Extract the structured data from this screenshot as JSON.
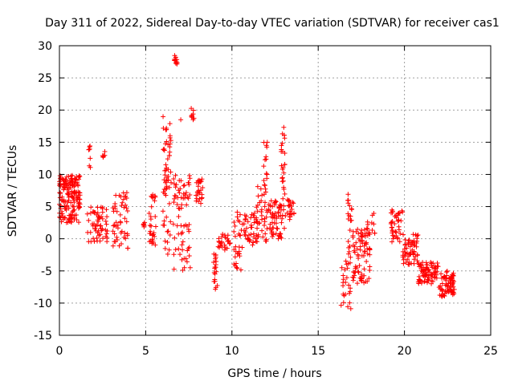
{
  "chart_data": {
    "type": "scatter",
    "title": "Day 311 of 2022, Sidereal Day-to-day VTEC variation (SDTVAR) for receiver cas1",
    "xlabel": "GPS time / hours",
    "ylabel": "SDTVAR / TECUs",
    "xlim": [
      0,
      25
    ],
    "ylim": [
      -15,
      30
    ],
    "xticks": [
      0,
      5,
      10,
      15,
      20,
      25
    ],
    "yticks": [
      -15,
      -10,
      -5,
      0,
      5,
      10,
      15,
      20,
      25,
      30
    ],
    "grid": true,
    "marker": "+",
    "color": "#ff0000",
    "series": [
      {
        "name": "SDTVAR",
        "clusters": [
          {
            "x0": 0.0,
            "x1": 1.2,
            "ymin": 2.5,
            "ymax": 10.0,
            "count": 160
          },
          {
            "x0": 1.6,
            "x1": 2.8,
            "ymin": -0.5,
            "ymax": 5.0,
            "count": 60
          },
          {
            "x0": 1.7,
            "x1": 1.8,
            "ymin": 10.5,
            "ymax": 14.5,
            "count": 8
          },
          {
            "x0": 2.5,
            "x1": 2.65,
            "ymin": 12.5,
            "ymax": 14.0,
            "count": 6
          },
          {
            "x0": 3.1,
            "x1": 4.0,
            "ymin": -1.5,
            "ymax": 7.5,
            "count": 50
          },
          {
            "x0": 4.85,
            "x1": 5.0,
            "ymin": 1.8,
            "ymax": 2.6,
            "count": 6
          },
          {
            "x0": 5.2,
            "x1": 5.6,
            "ymin": -1.5,
            "ymax": 7.0,
            "count": 30
          },
          {
            "x0": 6.0,
            "x1": 6.5,
            "ymin": -2.5,
            "ymax": 20.0,
            "count": 60
          },
          {
            "x0": 6.65,
            "x1": 6.85,
            "ymin": 27.0,
            "ymax": 28.5,
            "count": 10
          },
          {
            "x0": 6.6,
            "x1": 7.6,
            "ymin": -5.0,
            "ymax": 10.0,
            "count": 70
          },
          {
            "x0": 7.0,
            "x1": 7.1,
            "ymin": 18.5,
            "ymax": 18.5,
            "count": 1
          },
          {
            "x0": 7.6,
            "x1": 7.8,
            "ymin": 18.0,
            "ymax": 20.5,
            "count": 8
          },
          {
            "x0": 7.9,
            "x1": 8.3,
            "ymin": 5.0,
            "ymax": 9.5,
            "count": 25
          },
          {
            "x0": 8.9,
            "x1": 9.2,
            "ymin": -8.0,
            "ymax": -2.0,
            "count": 20
          },
          {
            "x0": 9.2,
            "x1": 9.9,
            "ymin": -2.0,
            "ymax": 0.8,
            "count": 25
          },
          {
            "x0": 10.1,
            "x1": 10.6,
            "ymin": -5.0,
            "ymax": 4.5,
            "count": 30
          },
          {
            "x0": 10.6,
            "x1": 11.5,
            "ymin": -1.0,
            "ymax": 4.0,
            "count": 40
          },
          {
            "x0": 11.4,
            "x1": 12.0,
            "ymin": -0.5,
            "ymax": 8.5,
            "count": 40
          },
          {
            "x0": 11.8,
            "x1": 12.05,
            "ymin": 8.5,
            "ymax": 16.5,
            "count": 12
          },
          {
            "x0": 12.0,
            "x1": 12.9,
            "ymin": 0.0,
            "ymax": 6.0,
            "count": 60
          },
          {
            "x0": 12.85,
            "x1": 13.1,
            "ymin": 1.0,
            "ymax": 18.5,
            "count": 30
          },
          {
            "x0": 13.2,
            "x1": 13.6,
            "ymin": 3.0,
            "ymax": 6.5,
            "count": 20
          },
          {
            "x0": 16.3,
            "x1": 16.9,
            "ymin": -11.5,
            "ymax": -3.0,
            "count": 25
          },
          {
            "x0": 16.7,
            "x1": 17.0,
            "ymin": -3.0,
            "ymax": 7.0,
            "count": 20
          },
          {
            "x0": 17.0,
            "x1": 18.0,
            "ymin": -7.0,
            "ymax": 1.5,
            "count": 80
          },
          {
            "x0": 17.8,
            "x1": 18.3,
            "ymin": 0.0,
            "ymax": 4.5,
            "count": 12
          },
          {
            "x0": 19.2,
            "x1": 19.9,
            "ymin": -0.5,
            "ymax": 4.5,
            "count": 40
          },
          {
            "x0": 19.9,
            "x1": 20.8,
            "ymin": -4.0,
            "ymax": 1.0,
            "count": 60
          },
          {
            "x0": 20.8,
            "x1": 22.0,
            "ymin": -7.0,
            "ymax": -3.5,
            "count": 80
          },
          {
            "x0": 22.0,
            "x1": 22.9,
            "ymin": -9.0,
            "ymax": -5.0,
            "count": 70
          }
        ]
      }
    ]
  }
}
